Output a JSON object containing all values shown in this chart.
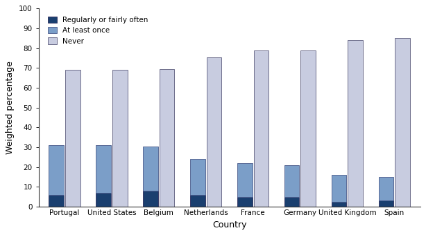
{
  "countries": [
    "Portugal",
    "United States",
    "Belgium",
    "Netherlands",
    "France",
    "Germany",
    "United Kingdom",
    "Spain"
  ],
  "regularly_fairly_often": [
    6,
    7,
    8,
    6,
    5,
    5,
    2.5,
    3
  ],
  "at_least_once": [
    31,
    31,
    30.5,
    24,
    22,
    21,
    16,
    15
  ],
  "never": [
    69,
    69,
    69.5,
    75.5,
    79,
    79,
    84,
    85
  ],
  "color_regularly": "#1a3f6f",
  "color_at_least": "#7b9ec8",
  "color_never": "#c8cce0",
  "bar_width": 0.32,
  "bar_gap": 0.03,
  "ylim": [
    0,
    100
  ],
  "yticks": [
    0,
    10,
    20,
    30,
    40,
    50,
    60,
    70,
    80,
    90,
    100
  ],
  "ylabel": "Weighted percentage",
  "xlabel": "Country",
  "legend_labels": [
    "Regularly or fairly often",
    "At least once",
    "Never"
  ],
  "figsize": [
    6.14,
    3.4
  ],
  "dpi": 100
}
